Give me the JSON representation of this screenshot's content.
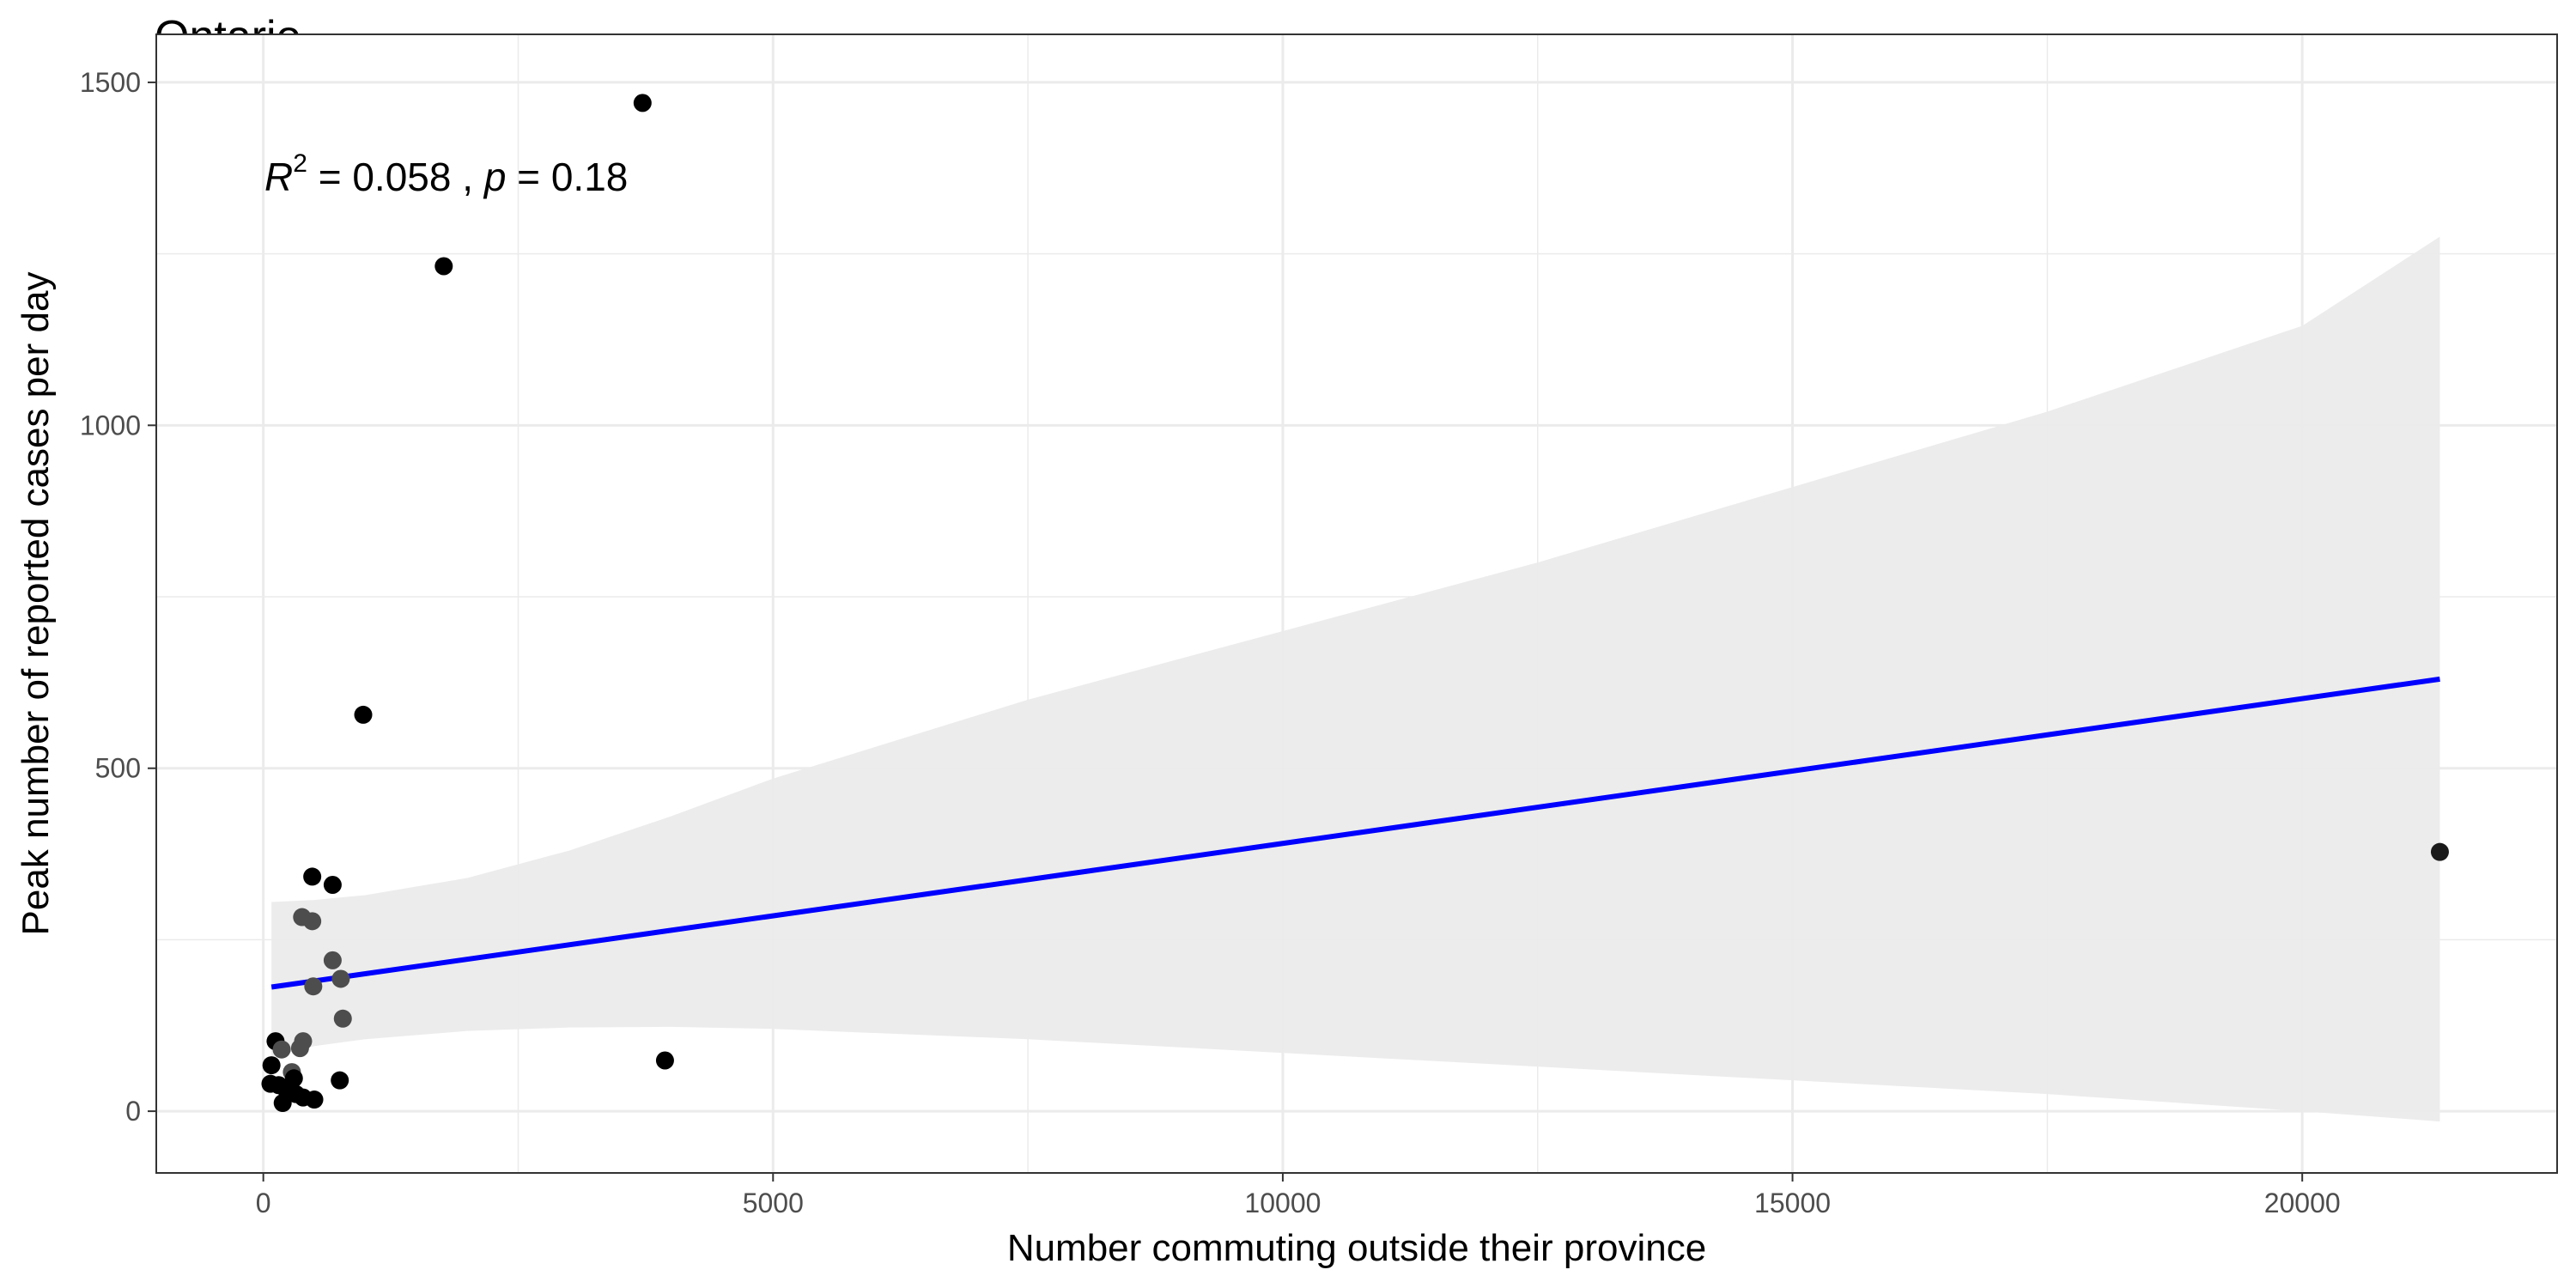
{
  "chart_data": {
    "type": "scatter",
    "title": "Ontario",
    "xlabel": "Number commuting outside their province",
    "ylabel": "Peak number of reported cases per day",
    "xlim": [
      -1050,
      22500
    ],
    "ylim": [
      -90,
      1570
    ],
    "x_ticks": [
      0,
      5000,
      10000,
      15000,
      20000
    ],
    "y_ticks": [
      0,
      500,
      1000,
      1500
    ],
    "x_tick_labels": [
      "0",
      "5000",
      "10000",
      "15000",
      "20000"
    ],
    "y_tick_labels": [
      "0",
      "500",
      "1000",
      "1500"
    ],
    "grid": true,
    "annotation": {
      "r_symbol": "R",
      "r_exp": "2",
      "r_rest": " = 0.058 , ",
      "p_symbol": "p",
      "p_rest": " = 0.18"
    },
    "points": [
      {
        "x": 3720,
        "y": 1470,
        "color": "#000000"
      },
      {
        "x": 1770,
        "y": 1232,
        "color": "#000000"
      },
      {
        "x": 980,
        "y": 578,
        "color": "#000000"
      },
      {
        "x": 21350,
        "y": 378,
        "color": "#1a1a1a"
      },
      {
        "x": 480,
        "y": 342,
        "color": "#000000"
      },
      {
        "x": 680,
        "y": 330,
        "color": "#000000"
      },
      {
        "x": 380,
        "y": 283,
        "color": "#4d4d4d"
      },
      {
        "x": 480,
        "y": 277,
        "color": "#4d4d4d"
      },
      {
        "x": 680,
        "y": 220,
        "color": "#4d4d4d"
      },
      {
        "x": 760,
        "y": 193,
        "color": "#4d4d4d"
      },
      {
        "x": 490,
        "y": 182,
        "color": "#4d4d4d"
      },
      {
        "x": 780,
        "y": 135,
        "color": "#4d4d4d"
      },
      {
        "x": 120,
        "y": 102,
        "color": "#000000"
      },
      {
        "x": 390,
        "y": 102,
        "color": "#4d4d4d"
      },
      {
        "x": 360,
        "y": 92,
        "color": "#4d4d4d"
      },
      {
        "x": 3940,
        "y": 74,
        "color": "#000000"
      },
      {
        "x": 180,
        "y": 90,
        "color": "#4d4d4d"
      },
      {
        "x": 80,
        "y": 67,
        "color": "#000000"
      },
      {
        "x": 280,
        "y": 57,
        "color": "#4d4d4d"
      },
      {
        "x": 300,
        "y": 48,
        "color": "#000000"
      },
      {
        "x": 750,
        "y": 45,
        "color": "#000000"
      },
      {
        "x": 70,
        "y": 40,
        "color": "#000000"
      },
      {
        "x": 150,
        "y": 38,
        "color": "#000000"
      },
      {
        "x": 230,
        "y": 30,
        "color": "#000000"
      },
      {
        "x": 320,
        "y": 25,
        "color": "#000000"
      },
      {
        "x": 390,
        "y": 20,
        "color": "#000000"
      },
      {
        "x": 500,
        "y": 17,
        "color": "#000000"
      },
      {
        "x": 190,
        "y": 12,
        "color": "#000000"
      }
    ],
    "regression": {
      "color": "#0000ff",
      "line": [
        [
          80,
          181
        ],
        [
          21350,
          630
        ]
      ],
      "band_color": "#ebebeb",
      "band": [
        {
          "x": 80,
          "lo": 80,
          "hi": 305
        },
        {
          "x": 500,
          "lo": 95,
          "hi": 308
        },
        {
          "x": 1000,
          "lo": 105,
          "hi": 315
        },
        {
          "x": 2000,
          "lo": 117,
          "hi": 340
        },
        {
          "x": 3000,
          "lo": 122,
          "hi": 380
        },
        {
          "x": 4000,
          "lo": 123,
          "hi": 430
        },
        {
          "x": 5000,
          "lo": 120,
          "hi": 485
        },
        {
          "x": 7500,
          "lo": 105,
          "hi": 600
        },
        {
          "x": 10000,
          "lo": 85,
          "hi": 700
        },
        {
          "x": 12500,
          "lo": 65,
          "hi": 800
        },
        {
          "x": 15000,
          "lo": 45,
          "hi": 910
        },
        {
          "x": 17500,
          "lo": 25,
          "hi": 1020
        },
        {
          "x": 20000,
          "lo": 0,
          "hi": 1145
        },
        {
          "x": 21350,
          "lo": -15,
          "hi": 1275
        }
      ]
    }
  }
}
